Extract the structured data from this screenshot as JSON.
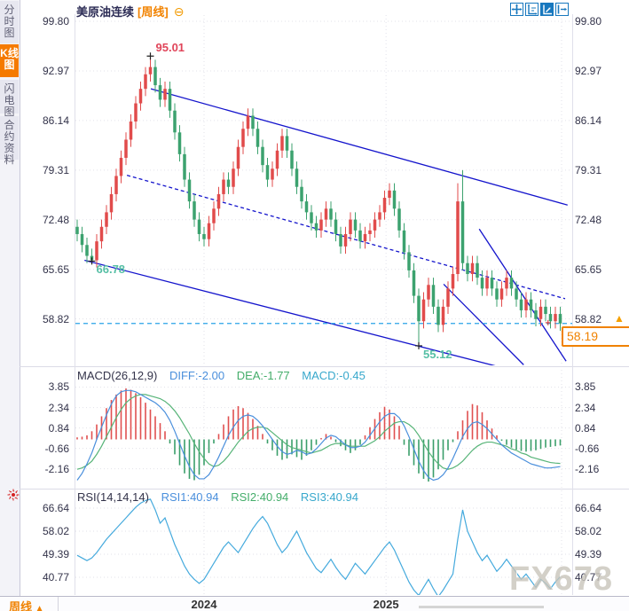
{
  "sidebar": {
    "tabs": [
      {
        "label": "分时图",
        "selected": false
      },
      {
        "label": "K线图",
        "selected": true
      },
      {
        "label": "闪电图",
        "selected": false
      },
      {
        "label": "合约资料",
        "selected": false
      }
    ]
  },
  "header": {
    "title": "美原油连续",
    "timeframe": "[周线]",
    "collapse_glyph": "⊖"
  },
  "toolbar": {
    "icons": [
      "pan-tool",
      "axis-zoom-tool",
      "axis-scale-tool-active",
      "reset-view-tool"
    ]
  },
  "price_label": {
    "value": "58.19",
    "arrow": "▲"
  },
  "indicators": {
    "macd": {
      "title": "MACD(26,12,9)",
      "diff": "DIFF:-2.00",
      "dea": "DEA:-1.77",
      "macd": "MACD:-0.45"
    },
    "rsi": {
      "title": "RSI(14,14,14)",
      "rsi1": "RSI1:40.94",
      "rsi2": "RSI2:40.94",
      "rsi3": "RSI3:40.94"
    }
  },
  "bottom_bar": {
    "timeframe": "周线",
    "arrow": "▲"
  },
  "watermark": {
    "text": "FX678"
  },
  "colors": {
    "up": "#e14b4b",
    "down": "#3ca26f",
    "trend": "#1414cc",
    "price_line": "#2aa2e8",
    "hist_pos": "#e05050",
    "hist_neg": "#3a9e6a",
    "diff_line": "#4a8fdc",
    "dea_line": "#57b478",
    "rsi_line": "#45aadd",
    "grid": "#e2e2ea",
    "accent_orange": "#f08200"
  },
  "chart_data": [
    {
      "type": "candlestick",
      "title": "美原油连续",
      "interval": "周线",
      "y_ticks": [
        99.8,
        92.97,
        86.14,
        79.31,
        72.48,
        65.65,
        58.82
      ],
      "last_price": 58.19,
      "first_open": 71.5,
      "wick": 1.0,
      "closes": [
        70.5,
        69.0,
        67.5,
        66.9,
        69.5,
        71.5,
        73.5,
        76.0,
        78.5,
        81.0,
        83.5,
        86.0,
        88.5,
        90.5,
        92.5,
        93.5,
        91.0,
        89.0,
        90.5,
        87.5,
        84.5,
        81.5,
        78.0,
        75.0,
        72.5,
        70.5,
        69.8,
        72.0,
        74.0,
        76.0,
        78.0,
        77.0,
        79.5,
        82.5,
        85.0,
        86.8,
        85.0,
        82.5,
        80.0,
        78.0,
        79.5,
        82.0,
        84.0,
        82.0,
        79.5,
        77.0,
        75.0,
        73.5,
        72.0,
        71.0,
        72.5,
        74.0,
        72.5,
        70.5,
        68.8,
        70.5,
        72.5,
        71.0,
        69.5,
        70.5,
        71.0,
        72.5,
        73.5,
        75.5,
        76.5,
        74.0,
        71.0,
        68.0,
        65.5,
        62.0,
        58.5,
        61.5,
        63.5,
        60.5,
        58.0,
        60.5,
        63.0,
        65.0,
        75.0,
        66.5,
        65.0,
        66.5,
        64.5,
        63.0,
        64.5,
        63.0,
        61.5,
        63.0,
        64.5,
        63.0,
        61.5,
        60.0,
        61.5,
        60.0,
        58.8,
        60.5,
        59.5,
        58.5,
        59.5,
        58.19
      ],
      "overrides": {
        "3": {
          "l": 66.78
        },
        "15": {
          "h": 95.01
        },
        "70": {
          "l": 55.12
        },
        "78": {
          "h": 77.5
        },
        "79": {
          "h": 79.31
        }
      },
      "annotations": [
        {
          "label": "95.01",
          "i": 15,
          "price": 95.01,
          "kind": "high"
        },
        {
          "label": "66.78",
          "i": 3,
          "price": 66.78,
          "kind": "low"
        },
        {
          "label": "55.12",
          "i": 70,
          "price": 55.12,
          "kind": "low"
        }
      ],
      "last_marker": {
        "i": 96.5,
        "price": 58.3
      },
      "trendlines": [
        {
          "i1": 15.1,
          "p1": 90.5,
          "i2": 100.5,
          "p2": 74.5,
          "dash": false
        },
        {
          "i1": 1.5,
          "p1": 66.9,
          "i2": 86.0,
          "p2": 52.3,
          "dash": false
        },
        {
          "i1": 10.2,
          "p1": 78.6,
          "i2": 100.0,
          "p2": 61.6,
          "dash": true
        },
        {
          "i1": 82.4,
          "p1": 71.2,
          "i2": 100.2,
          "p2": 53.0,
          "dash": false
        },
        {
          "i1": 75.1,
          "p1": 63.6,
          "i2": 91.5,
          "p2": 52.5,
          "dash": false
        }
      ],
      "x_year_ticks": [
        {
          "label": "2024",
          "i": 26
        },
        {
          "label": "2025",
          "i": 63.3
        }
      ],
      "extra_vgrid_x": [
        633
      ]
    },
    {
      "type": "bar",
      "name": "MACD",
      "params": "26,12,9",
      "y_ticks": [
        3.85,
        2.34,
        0.84,
        -0.66,
        -2.16
      ],
      "diff_value": -2.0,
      "dea_value": -1.77,
      "macd_value": -0.45,
      "hist": [
        0.15,
        0.2,
        0.3,
        0.6,
        1.1,
        1.7,
        2.3,
        2.9,
        3.3,
        3.6,
        3.75,
        3.65,
        3.4,
        3.1,
        2.7,
        2.2,
        1.7,
        1.2,
        0.6,
        -0.3,
        -1.1,
        -1.9,
        -2.5,
        -2.9,
        -3.0,
        -2.6,
        -1.9,
        -1.0,
        -0.3,
        0.4,
        1.1,
        1.7,
        2.2,
        2.45,
        2.3,
        1.95,
        1.5,
        1.0,
        0.4,
        -0.3,
        -0.8,
        -1.2,
        -1.5,
        -1.4,
        -1.1,
        -1.3,
        -1.5,
        -1.2,
        -0.8,
        -0.4,
        0.1,
        0.4,
        0.2,
        -0.2,
        -0.5,
        -0.8,
        -1.0,
        -0.8,
        -0.4,
        0.3,
        0.9,
        1.5,
        2.0,
        2.4,
        2.2,
        1.7,
        1.0,
        -0.4,
        -1.2,
        -1.9,
        -2.5,
        -2.9,
        -3.1,
        -2.8,
        -2.2,
        -1.5,
        -0.8,
        -0.2,
        0.6,
        1.4,
        2.1,
        2.6,
        2.5,
        2.0,
        1.4,
        0.8,
        0.3,
        -0.1,
        -0.4,
        -0.6,
        -0.75,
        -0.85,
        -0.9,
        -0.85,
        -0.8,
        -0.7,
        -0.6,
        -0.55,
        -0.5,
        -0.45
      ],
      "diff": [
        -3.0,
        -2.5,
        -1.8,
        -1.0,
        0.0,
        0.9,
        1.8,
        2.6,
        3.2,
        3.5,
        3.6,
        3.6,
        3.5,
        3.3,
        3.1,
        2.9,
        2.7,
        2.4,
        2.0,
        1.4,
        0.6,
        -0.3,
        -1.2,
        -2.0,
        -2.6,
        -2.9,
        -2.9,
        -2.6,
        -2.0,
        -1.3,
        -0.5,
        0.3,
        0.9,
        1.4,
        1.7,
        1.8,
        1.7,
        1.4,
        1.0,
        0.5,
        0.0,
        -0.5,
        -0.9,
        -1.1,
        -1.0,
        -0.8,
        -0.9,
        -1.1,
        -1.0,
        -0.7,
        -0.3,
        0.1,
        0.3,
        0.2,
        -0.1,
        -0.4,
        -0.6,
        -0.6,
        -0.5,
        -0.2,
        0.3,
        0.8,
        1.3,
        1.7,
        1.9,
        1.9,
        1.6,
        1.0,
        0.2,
        -0.7,
        -1.6,
        -2.3,
        -2.8,
        -3.0,
        -2.9,
        -2.6,
        -2.1,
        -1.4,
        -0.6,
        0.2,
        0.8,
        1.2,
        1.3,
        1.1,
        0.8,
        0.4,
        0.0,
        -0.4,
        -0.7,
        -1.0,
        -1.2,
        -1.4,
        -1.6,
        -1.8,
        -1.9,
        -2.0,
        -2.1,
        -2.1,
        -2.05,
        -2.0
      ],
      "dea": [
        -2.2,
        -2.1,
        -1.9,
        -1.6,
        -1.1,
        -0.5,
        0.2,
        0.9,
        1.6,
        2.2,
        2.7,
        3.0,
        3.2,
        3.3,
        3.3,
        3.2,
        3.1,
        3.0,
        2.8,
        2.5,
        2.1,
        1.6,
        1.0,
        0.4,
        -0.3,
        -0.9,
        -1.4,
        -1.8,
        -2.0,
        -1.9,
        -1.6,
        -1.2,
        -0.7,
        -0.2,
        0.2,
        0.6,
        0.8,
        0.9,
        0.9,
        0.8,
        0.5,
        0.2,
        -0.1,
        -0.4,
        -0.6,
        -0.7,
        -0.8,
        -0.9,
        -1.0,
        -0.9,
        -0.8,
        -0.6,
        -0.4,
        -0.3,
        -0.3,
        -0.4,
        -0.5,
        -0.5,
        -0.5,
        -0.5,
        -0.3,
        -0.1,
        0.2,
        0.6,
        0.9,
        1.2,
        1.3,
        1.3,
        1.1,
        0.8,
        0.3,
        -0.3,
        -0.9,
        -1.4,
        -1.8,
        -2.1,
        -2.2,
        -2.1,
        -1.9,
        -1.6,
        -1.2,
        -0.8,
        -0.5,
        -0.3,
        -0.2,
        -0.2,
        -0.3,
        -0.4,
        -0.5,
        -0.7,
        -0.8,
        -1.0,
        -1.1,
        -1.3,
        -1.4,
        -1.5,
        -1.6,
        -1.7,
        -1.74,
        -1.77
      ]
    },
    {
      "type": "line",
      "name": "RSI",
      "params": "14,14,14",
      "y_ticks": [
        66.64,
        58.02,
        49.39,
        40.77
      ],
      "rsi1_value": 40.94,
      "rsi2_value": 40.94,
      "rsi3_value": 40.94,
      "values": [
        49,
        48,
        47,
        48,
        50,
        52.5,
        55,
        57,
        59,
        61,
        63,
        65,
        67,
        68.5,
        69.5,
        70,
        66,
        61,
        63,
        58,
        53,
        49,
        45,
        42,
        40,
        38.5,
        40,
        43,
        46,
        49,
        52,
        54,
        52,
        50,
        53,
        56,
        59,
        61.5,
        63.5,
        61,
        57,
        53,
        50,
        52,
        55,
        58,
        54,
        50,
        47,
        44,
        42.5,
        45,
        47.5,
        44.5,
        42,
        40,
        43,
        46,
        44,
        42,
        44.5,
        47,
        49.5,
        52,
        54,
        51,
        47,
        43,
        39,
        36,
        34,
        37,
        40,
        36.5,
        33.5,
        36,
        39,
        42,
        55,
        66,
        58,
        54,
        50,
        47,
        49,
        46,
        43,
        45,
        47.5,
        45,
        42.5,
        40,
        42,
        39.5,
        37,
        40,
        38.5,
        36.5,
        39,
        40.94
      ]
    }
  ]
}
